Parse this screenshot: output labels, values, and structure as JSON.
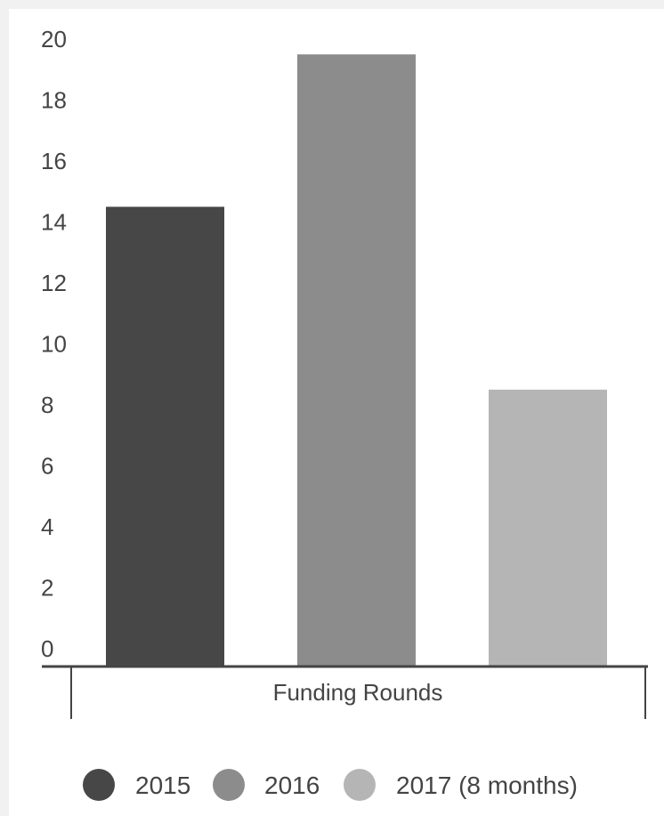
{
  "chart_data": {
    "type": "bar",
    "title": "",
    "xlabel": "",
    "ylabel": "",
    "categories": [
      "Funding Rounds"
    ],
    "series": [
      {
        "name": "2015",
        "values": [
          14.5
        ],
        "color": "#474747"
      },
      {
        "name": "2016",
        "values": [
          19.5
        ],
        "color": "#8c8c8c"
      },
      {
        "name": "2017 (8 months)",
        "values": [
          8.5
        ],
        "color": "#b5b5b5"
      }
    ],
    "ylim": [
      0,
      20
    ],
    "yticks": [
      "0",
      "2",
      "4",
      "6",
      "8",
      "10",
      "12",
      "14",
      "16",
      "18",
      "20"
    ],
    "grid": false,
    "legend": "bottom"
  }
}
